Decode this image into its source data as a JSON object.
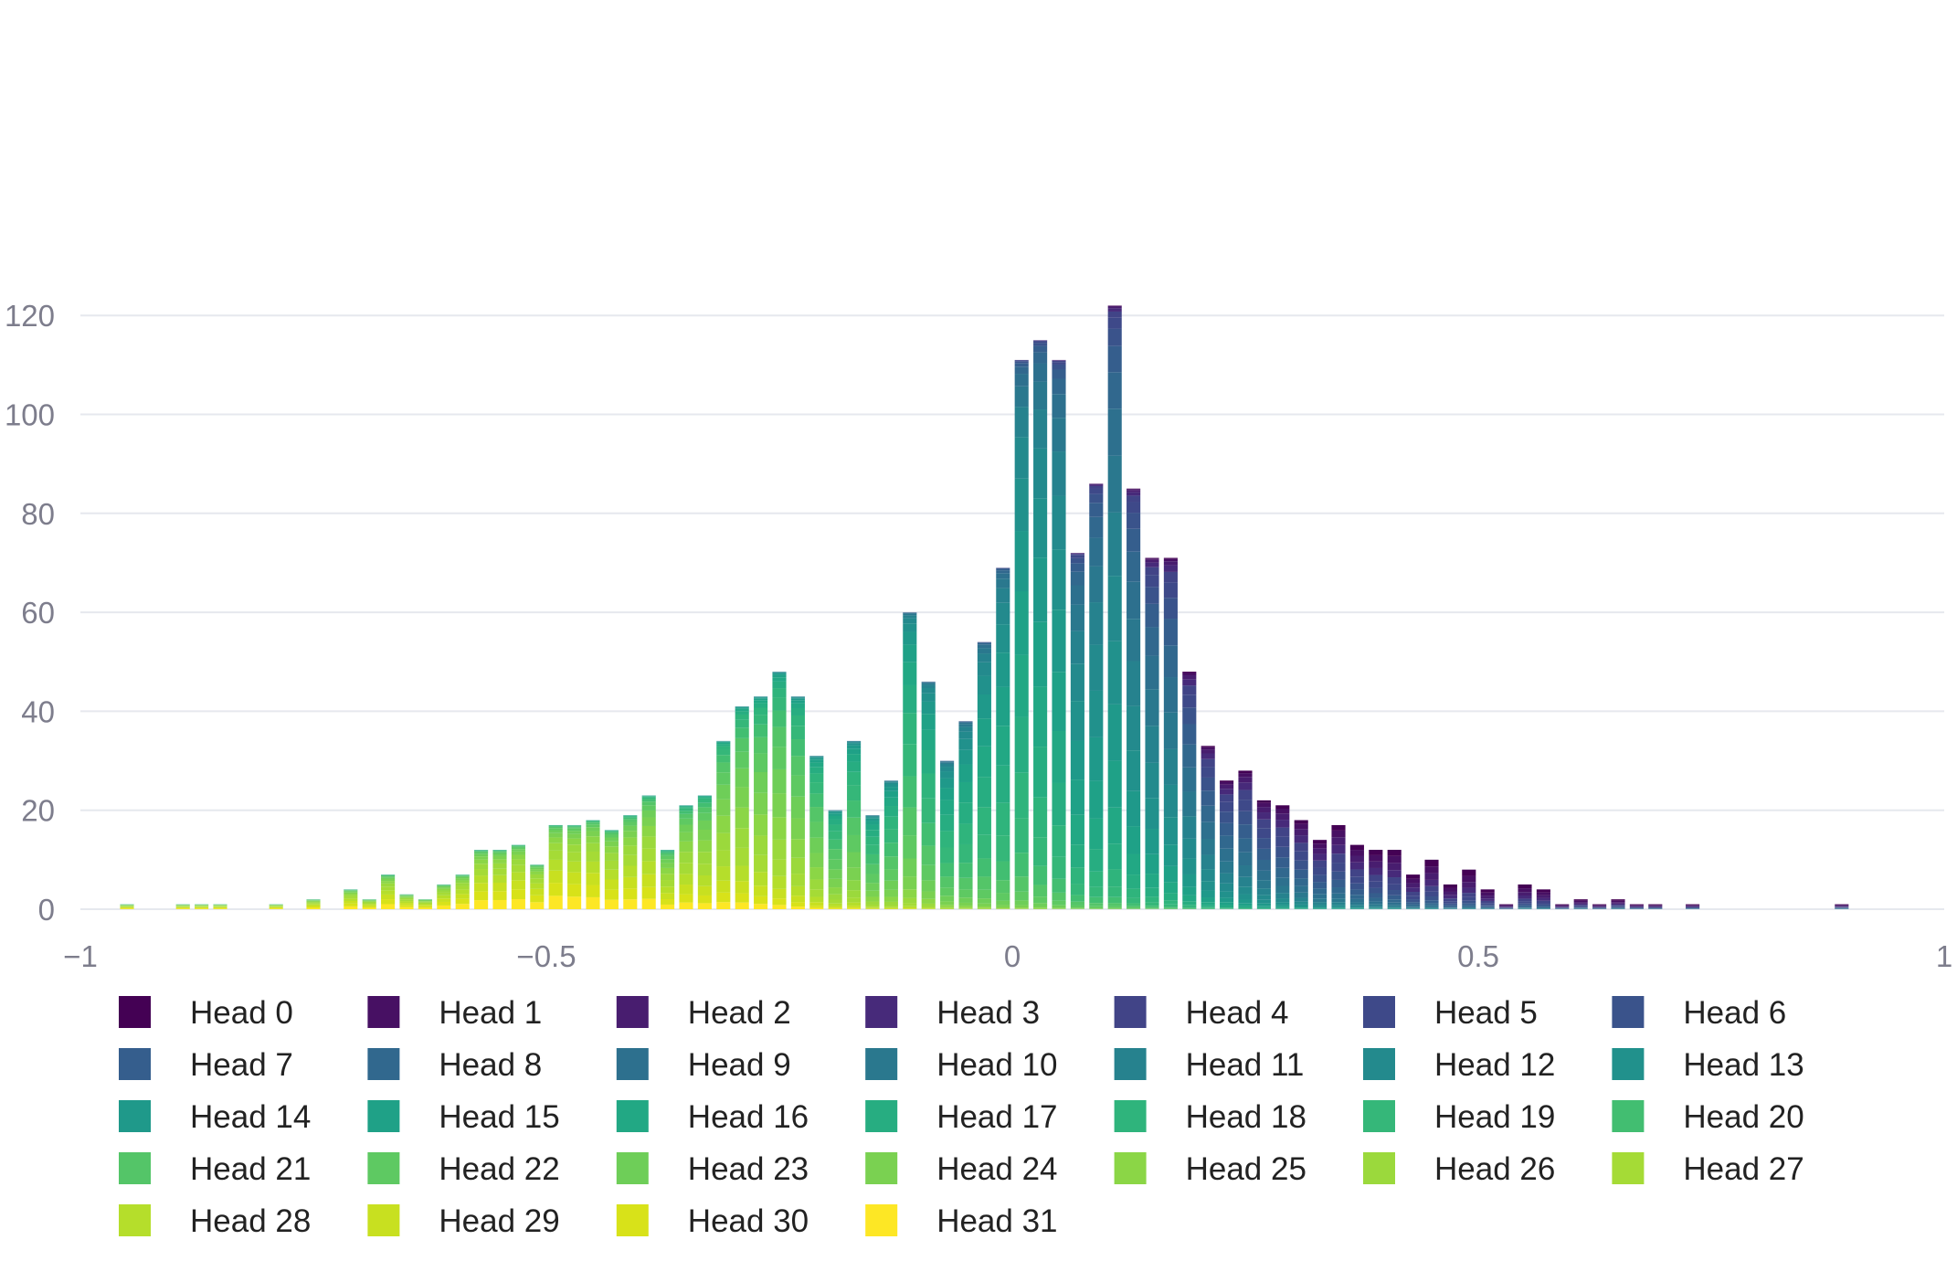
{
  "chart_data": {
    "type": "bar",
    "stacked": true,
    "title": "",
    "xlabel": "",
    "ylabel": "",
    "xlim": [
      -1,
      1
    ],
    "ylim": [
      0,
      122
    ],
    "bin_width": 0.02,
    "grid": true,
    "legend_position": "bottom",
    "x_ticks": [
      -1,
      -0.5,
      0,
      0.5,
      1
    ],
    "x_tick_labels": [
      "−1",
      "−0.5",
      "0",
      "0.5",
      "1"
    ],
    "y_ticks": [
      0,
      20,
      40,
      60,
      80,
      100,
      120
    ],
    "y_tick_labels": [
      "0",
      "20",
      "40",
      "60",
      "80",
      "100",
      "120"
    ],
    "series": [
      {
        "name": "Head 0",
        "color": "#440154"
      },
      {
        "name": "Head 1",
        "color": "#471063"
      },
      {
        "name": "Head 2",
        "color": "#481d6f"
      },
      {
        "name": "Head 3",
        "color": "#472a7a"
      },
      {
        "name": "Head 4",
        "color": "#414487"
      },
      {
        "name": "Head 5",
        "color": "#3e4989"
      },
      {
        "name": "Head 6",
        "color": "#3a538b"
      },
      {
        "name": "Head 7",
        "color": "#355e8d"
      },
      {
        "name": "Head 8",
        "color": "#31688e"
      },
      {
        "name": "Head 9",
        "color": "#2d708e"
      },
      {
        "name": "Head 10",
        "color": "#2a788e"
      },
      {
        "name": "Head 11",
        "color": "#26828e"
      },
      {
        "name": "Head 12",
        "color": "#238a8d"
      },
      {
        "name": "Head 13",
        "color": "#21918c"
      },
      {
        "name": "Head 14",
        "color": "#1f998a"
      },
      {
        "name": "Head 15",
        "color": "#1fa187"
      },
      {
        "name": "Head 16",
        "color": "#22a884"
      },
      {
        "name": "Head 17",
        "color": "#27ad81"
      },
      {
        "name": "Head 18",
        "color": "#2fb47c"
      },
      {
        "name": "Head 19",
        "color": "#35b779"
      },
      {
        "name": "Head 20",
        "color": "#42be71"
      },
      {
        "name": "Head 21",
        "color": "#54c568"
      },
      {
        "name": "Head 22",
        "color": "#5ec962"
      },
      {
        "name": "Head 23",
        "color": "#6ece58"
      },
      {
        "name": "Head 24",
        "color": "#7ad151"
      },
      {
        "name": "Head 25",
        "color": "#8bd646"
      },
      {
        "name": "Head 26",
        "color": "#9bd93c"
      },
      {
        "name": "Head 27",
        "color": "#a5db36"
      },
      {
        "name": "Head 28",
        "color": "#b5de2b"
      },
      {
        "name": "Head 29",
        "color": "#c8e020"
      },
      {
        "name": "Head 30",
        "color": "#d8e219"
      },
      {
        "name": "Head 31",
        "color": "#fde725"
      }
    ],
    "bins": [
      {
        "x": -0.95,
        "total": 1
      },
      {
        "x": -0.89,
        "total": 1
      },
      {
        "x": -0.87,
        "total": 1
      },
      {
        "x": -0.85,
        "total": 1
      },
      {
        "x": -0.79,
        "total": 1
      },
      {
        "x": -0.75,
        "total": 2
      },
      {
        "x": -0.71,
        "total": 4
      },
      {
        "x": -0.69,
        "total": 2
      },
      {
        "x": -0.67,
        "total": 7
      },
      {
        "x": -0.65,
        "total": 3
      },
      {
        "x": -0.63,
        "total": 2
      },
      {
        "x": -0.61,
        "total": 5
      },
      {
        "x": -0.59,
        "total": 7
      },
      {
        "x": -0.57,
        "total": 12
      },
      {
        "x": -0.55,
        "total": 12
      },
      {
        "x": -0.53,
        "total": 13
      },
      {
        "x": -0.51,
        "total": 9
      },
      {
        "x": -0.49,
        "total": 17
      },
      {
        "x": -0.47,
        "total": 17
      },
      {
        "x": -0.45,
        "total": 18
      },
      {
        "x": -0.43,
        "total": 16
      },
      {
        "x": -0.41,
        "total": 19
      },
      {
        "x": -0.39,
        "total": 23
      },
      {
        "x": -0.37,
        "total": 12
      },
      {
        "x": -0.35,
        "total": 21
      },
      {
        "x": -0.33,
        "total": 23
      },
      {
        "x": -0.31,
        "total": 34
      },
      {
        "x": -0.29,
        "total": 41
      },
      {
        "x": -0.27,
        "total": 43
      },
      {
        "x": -0.25,
        "total": 48
      },
      {
        "x": -0.23,
        "total": 43
      },
      {
        "x": -0.21,
        "total": 31
      },
      {
        "x": -0.19,
        "total": 20
      },
      {
        "x": -0.17,
        "total": 34
      },
      {
        "x": -0.15,
        "total": 19
      },
      {
        "x": -0.13,
        "total": 26
      },
      {
        "x": -0.11,
        "total": 60
      },
      {
        "x": -0.09,
        "total": 46
      },
      {
        "x": -0.07,
        "total": 30
      },
      {
        "x": -0.05,
        "total": 38
      },
      {
        "x": -0.03,
        "total": 54
      },
      {
        "x": -0.01,
        "total": 69
      },
      {
        "x": 0.01,
        "total": 111
      },
      {
        "x": 0.03,
        "total": 115
      },
      {
        "x": 0.05,
        "total": 111
      },
      {
        "x": 0.07,
        "total": 72
      },
      {
        "x": 0.09,
        "total": 86
      },
      {
        "x": 0.11,
        "total": 122
      },
      {
        "x": 0.13,
        "total": 85
      },
      {
        "x": 0.15,
        "total": 71
      },
      {
        "x": 0.17,
        "total": 71
      },
      {
        "x": 0.19,
        "total": 48
      },
      {
        "x": 0.21,
        "total": 33
      },
      {
        "x": 0.23,
        "total": 26
      },
      {
        "x": 0.25,
        "total": 28
      },
      {
        "x": 0.27,
        "total": 22
      },
      {
        "x": 0.29,
        "total": 21
      },
      {
        "x": 0.31,
        "total": 18
      },
      {
        "x": 0.33,
        "total": 14
      },
      {
        "x": 0.35,
        "total": 17
      },
      {
        "x": 0.37,
        "total": 13
      },
      {
        "x": 0.39,
        "total": 12
      },
      {
        "x": 0.41,
        "total": 12
      },
      {
        "x": 0.43,
        "total": 7
      },
      {
        "x": 0.45,
        "total": 10
      },
      {
        "x": 0.47,
        "total": 5
      },
      {
        "x": 0.49,
        "total": 8
      },
      {
        "x": 0.51,
        "total": 4
      },
      {
        "x": 0.53,
        "total": 1
      },
      {
        "x": 0.55,
        "total": 5
      },
      {
        "x": 0.57,
        "total": 4
      },
      {
        "x": 0.59,
        "total": 1
      },
      {
        "x": 0.61,
        "total": 2
      },
      {
        "x": 0.63,
        "total": 1
      },
      {
        "x": 0.65,
        "total": 2
      },
      {
        "x": 0.67,
        "total": 1
      },
      {
        "x": 0.69,
        "total": 1
      },
      {
        "x": 0.73,
        "total": 1
      },
      {
        "x": 0.89,
        "total": 1
      }
    ]
  }
}
